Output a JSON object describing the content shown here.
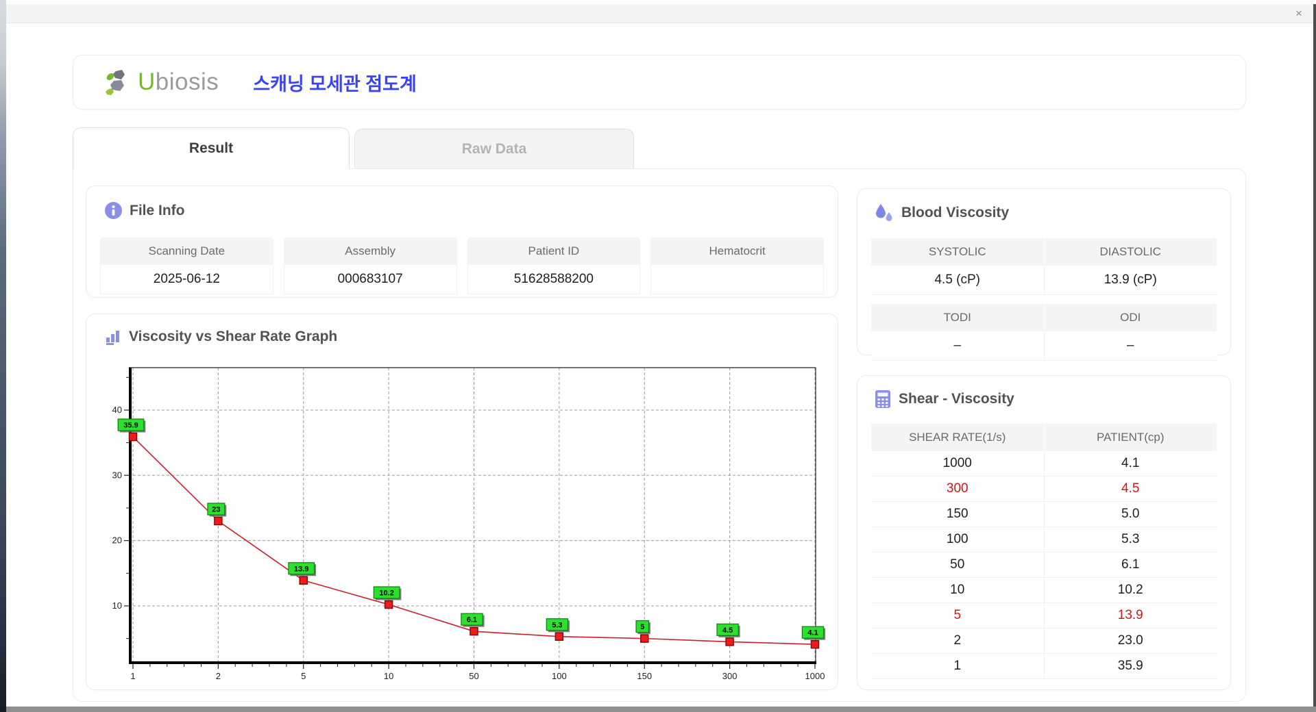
{
  "window": {
    "close_label": "×"
  },
  "header": {
    "brand_first": "U",
    "brand_rest": "biosis",
    "app_title": "스캐닝 모세관 점도계"
  },
  "tabs": {
    "result": "Result",
    "raw_data": "Raw Data"
  },
  "file_info": {
    "title": "File Info",
    "fields": [
      {
        "label": "Scanning Date",
        "value": "2025-06-12"
      },
      {
        "label": "Assembly",
        "value": "000683107"
      },
      {
        "label": "Patient ID",
        "value": "51628588200"
      },
      {
        "label": "Hematocrit",
        "value": ""
      }
    ]
  },
  "blood_viscosity": {
    "title": "Blood Viscosity",
    "groups": [
      {
        "labels": [
          "SYSTOLIC",
          "DIASTOLIC"
        ],
        "values": [
          "4.5 (cP)",
          "13.9 (cP)"
        ]
      },
      {
        "labels": [
          "TODI",
          "ODI"
        ],
        "values": [
          "–",
          "–"
        ]
      }
    ]
  },
  "shear_viscosity": {
    "title": "Shear - Viscosity",
    "columns": [
      "SHEAR RATE(1/s)",
      "PATIENT(cp)"
    ],
    "rows": [
      {
        "shear_rate": "1000",
        "patient": "4.1",
        "highlight": false
      },
      {
        "shear_rate": "300",
        "patient": "4.5",
        "highlight": true
      },
      {
        "shear_rate": "150",
        "patient": "5.0",
        "highlight": false
      },
      {
        "shear_rate": "100",
        "patient": "5.3",
        "highlight": false
      },
      {
        "shear_rate": "50",
        "patient": "6.1",
        "highlight": false
      },
      {
        "shear_rate": "10",
        "patient": "10.2",
        "highlight": false
      },
      {
        "shear_rate": "5",
        "patient": "13.9",
        "highlight": true
      },
      {
        "shear_rate": "2",
        "patient": "23.0",
        "highlight": false
      },
      {
        "shear_rate": "1",
        "patient": "35.9",
        "highlight": false
      }
    ],
    "highlight_color": "#d01616"
  },
  "graph_section": {
    "title": "Viscosity vs Shear Rate Graph"
  },
  "chart_data": {
    "type": "line",
    "title": "Viscosity vs Shear Rate Graph",
    "x_categories": [
      "1",
      "2",
      "5",
      "10",
      "50",
      "100",
      "150",
      "300",
      "1000"
    ],
    "values": [
      35.9,
      23,
      13.9,
      10.2,
      6.1,
      5.3,
      5,
      4.5,
      4.1
    ],
    "point_labels": [
      "35.9",
      "23",
      "13.9",
      "10.2",
      "6.1",
      "5.3",
      "5",
      "4.5",
      "4.1"
    ],
    "x_axis_note": "categories evenly spaced",
    "y_ticks": [
      10,
      20,
      30,
      40
    ],
    "y_minor_ticks": [
      5,
      15,
      25,
      35,
      45
    ],
    "ylim": [
      1.5,
      46.5
    ],
    "grid": "dashed",
    "legend": "none",
    "line_color": "#cc1f2e",
    "marker": "square",
    "marker_color": "#ee1c1c",
    "marker_border": "#7d0d0d",
    "point_label_bg": "#2ee02e",
    "point_label_border": "#117a11"
  },
  "colors": {
    "accent_purple": "#8a90e8",
    "brand_green": "#76b82a",
    "brand_gray": "#9b9b9b",
    "title_blue": "#3b43ee",
    "highlight_red": "#d01616"
  }
}
